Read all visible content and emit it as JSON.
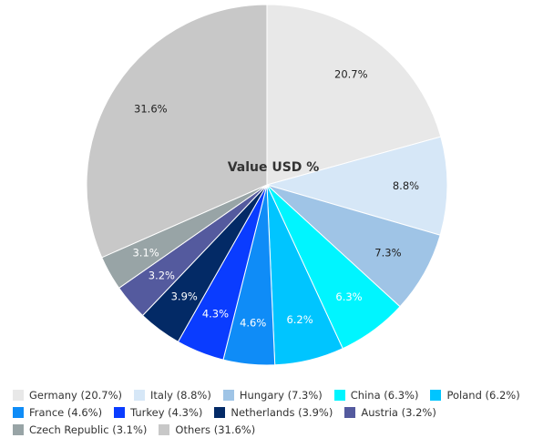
{
  "chart_data": {
    "type": "pie",
    "title": "Value USD %",
    "slices": [
      {
        "label": "Germany",
        "value": 20.7,
        "display": "20.7%",
        "legend": "Germany (20.7%)",
        "color": "#e8e8e8",
        "label_color": "#222222"
      },
      {
        "label": "Italy",
        "value": 8.8,
        "display": "8.8%",
        "legend": "Italy (8.8%)",
        "color": "#d6e7f7",
        "label_color": "#222222"
      },
      {
        "label": "Hungary",
        "value": 7.3,
        "display": "7.3%",
        "legend": "Hungary (7.3%)",
        "color": "#9fc4e6",
        "label_color": "#222222"
      },
      {
        "label": "China",
        "value": 6.3,
        "display": "6.3%",
        "legend": "China (6.3%)",
        "color": "#00f5ff",
        "label_color": "#ffffff"
      },
      {
        "label": "Poland",
        "value": 6.2,
        "display": "6.2%",
        "legend": "Poland (6.2%)",
        "color": "#00c5ff",
        "label_color": "#ffffff"
      },
      {
        "label": "France",
        "value": 4.6,
        "display": "4.6%",
        "legend": "France (4.6%)",
        "color": "#0f8cf7",
        "label_color": "#ffffff"
      },
      {
        "label": "Turkey",
        "value": 4.3,
        "display": "4.3%",
        "legend": "Turkey (4.3%)",
        "color": "#0a3cff",
        "label_color": "#ffffff"
      },
      {
        "label": "Netherlands",
        "value": 3.9,
        "display": "3.9%",
        "legend": "Netherlands (3.9%)",
        "color": "#032a66",
        "label_color": "#ffffff"
      },
      {
        "label": "Austria",
        "value": 3.2,
        "display": "3.2%",
        "legend": "Austria (3.2%)",
        "color": "#545a9e",
        "label_color": "#ffffff"
      },
      {
        "label": "Czech Republic",
        "value": 3.1,
        "display": "3.1%",
        "legend": "Czech Republic (3.1%)",
        "color": "#98a4a6",
        "label_color": "#ffffff"
      },
      {
        "label": "Others",
        "value": 31.6,
        "display": "31.6%",
        "legend": "Others (31.6%)",
        "color": "#c8c8c8",
        "label_color": "#222222"
      }
    ],
    "legend_position": "bottom"
  }
}
